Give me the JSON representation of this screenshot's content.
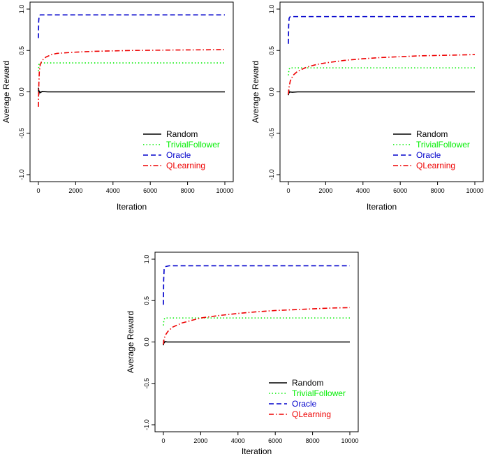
{
  "chart_data": [
    {
      "type": "line",
      "title": "",
      "xlabel": "Iteration",
      "ylabel": "Average Reward",
      "xlim": [
        0,
        10000
      ],
      "ylim": [
        -1.0,
        1.0
      ],
      "x_ticks": [
        "0",
        "2000",
        "4000",
        "6000",
        "8000",
        "10000"
      ],
      "y_ticks": [
        "-1.0",
        "-0.5",
        "0.0",
        "0.5",
        "1.0"
      ],
      "legend_position": "bottom-right",
      "grid": false,
      "series": [
        {
          "name": "Random",
          "color": "#000000",
          "dash": "solid",
          "points": [
            [
              0,
              0.05
            ],
            [
              20,
              -0.03
            ],
            [
              50,
              0.01
            ],
            [
              100,
              -0.01
            ],
            [
              200,
              0.005
            ],
            [
              500,
              0.0
            ],
            [
              1000,
              0.0
            ],
            [
              2000,
              0.0
            ],
            [
              5000,
              0.0
            ],
            [
              10000,
              0.0
            ]
          ]
        },
        {
          "name": "TrivialFollower",
          "color": "#00ee00",
          "dash": "dotted",
          "points": [
            [
              0,
              0.25
            ],
            [
              30,
              0.33
            ],
            [
              80,
              0.35
            ],
            [
              200,
              0.35
            ],
            [
              1000,
              0.35
            ],
            [
              5000,
              0.35
            ],
            [
              10000,
              0.35
            ]
          ]
        },
        {
          "name": "Oracle",
          "color": "#0000cc",
          "dash": "dashed",
          "points": [
            [
              0,
              0.65
            ],
            [
              15,
              0.85
            ],
            [
              40,
              0.92
            ],
            [
              100,
              0.93
            ],
            [
              500,
              0.93
            ],
            [
              2000,
              0.93
            ],
            [
              10000,
              0.93
            ]
          ]
        },
        {
          "name": "QLearning",
          "color": "#ee0000",
          "dash": "dashdot",
          "points": [
            [
              0,
              -0.18
            ],
            [
              10,
              -0.05
            ],
            [
              25,
              0.1
            ],
            [
              50,
              0.25
            ],
            [
              100,
              0.33
            ],
            [
              200,
              0.38
            ],
            [
              400,
              0.42
            ],
            [
              700,
              0.45
            ],
            [
              1000,
              0.465
            ],
            [
              2000,
              0.48
            ],
            [
              3000,
              0.49
            ],
            [
              5000,
              0.5
            ],
            [
              7000,
              0.505
            ],
            [
              10000,
              0.51
            ]
          ]
        }
      ]
    },
    {
      "type": "line",
      "title": "",
      "xlabel": "Iteration",
      "ylabel": "Average Reward",
      "xlim": [
        0,
        10000
      ],
      "ylim": [
        -1.0,
        1.0
      ],
      "x_ticks": [
        "0",
        "2000",
        "4000",
        "6000",
        "8000",
        "10000"
      ],
      "y_ticks": [
        "-1.0",
        "-0.5",
        "0.0",
        "0.5",
        "1.0"
      ],
      "legend_position": "bottom-right",
      "grid": false,
      "series": [
        {
          "name": "Random",
          "color": "#000000",
          "dash": "solid",
          "points": [
            [
              0,
              -0.04
            ],
            [
              20,
              0.02
            ],
            [
              50,
              -0.01
            ],
            [
              100,
              0.0
            ],
            [
              200,
              -0.005
            ],
            [
              500,
              0.0
            ],
            [
              1000,
              0.0
            ],
            [
              5000,
              0.0
            ],
            [
              10000,
              0.0
            ]
          ]
        },
        {
          "name": "TrivialFollower",
          "color": "#00ee00",
          "dash": "dotted",
          "points": [
            [
              0,
              0.2
            ],
            [
              30,
              0.27
            ],
            [
              80,
              0.29
            ],
            [
              200,
              0.29
            ],
            [
              1000,
              0.29
            ],
            [
              5000,
              0.29
            ],
            [
              10000,
              0.29
            ]
          ]
        },
        {
          "name": "Oracle",
          "color": "#0000cc",
          "dash": "dashed",
          "points": [
            [
              0,
              0.58
            ],
            [
              15,
              0.8
            ],
            [
              40,
              0.89
            ],
            [
              100,
              0.91
            ],
            [
              500,
              0.91
            ],
            [
              2000,
              0.91
            ],
            [
              10000,
              0.91
            ]
          ]
        },
        {
          "name": "QLearning",
          "color": "#ee0000",
          "dash": "dashdot",
          "points": [
            [
              0,
              -0.03
            ],
            [
              30,
              0.05
            ],
            [
              100,
              0.13
            ],
            [
              250,
              0.2
            ],
            [
              500,
              0.25
            ],
            [
              1000,
              0.3
            ],
            [
              1500,
              0.33
            ],
            [
              2000,
              0.35
            ],
            [
              3000,
              0.38
            ],
            [
              4000,
              0.4
            ],
            [
              5000,
              0.415
            ],
            [
              6000,
              0.425
            ],
            [
              7000,
              0.435
            ],
            [
              8000,
              0.44
            ],
            [
              9000,
              0.445
            ],
            [
              10000,
              0.45
            ]
          ]
        }
      ]
    },
    {
      "type": "line",
      "title": "",
      "xlabel": "Iteration",
      "ylabel": "Average Reward",
      "xlim": [
        0,
        10000
      ],
      "ylim": [
        -1.0,
        1.0
      ],
      "x_ticks": [
        "0",
        "2000",
        "4000",
        "6000",
        "8000",
        "10000"
      ],
      "y_ticks": [
        "-1.0",
        "-0.5",
        "0.0",
        "0.5",
        "1.0"
      ],
      "legend_position": "bottom-right",
      "grid": false,
      "series": [
        {
          "name": "Random",
          "color": "#000000",
          "dash": "solid",
          "points": [
            [
              0,
              -0.04
            ],
            [
              20,
              0.02
            ],
            [
              50,
              -0.01
            ],
            [
              100,
              0.005
            ],
            [
              200,
              0.0
            ],
            [
              500,
              0.0
            ],
            [
              1000,
              0.0
            ],
            [
              5000,
              0.0
            ],
            [
              10000,
              0.0
            ]
          ]
        },
        {
          "name": "TrivialFollower",
          "color": "#00ee00",
          "dash": "dotted",
          "points": [
            [
              0,
              0.2
            ],
            [
              30,
              0.27
            ],
            [
              80,
              0.29
            ],
            [
              200,
              0.29
            ],
            [
              1000,
              0.29
            ],
            [
              5000,
              0.29
            ],
            [
              10000,
              0.29
            ]
          ]
        },
        {
          "name": "Oracle",
          "color": "#0000cc",
          "dash": "dashed",
          "points": [
            [
              0,
              0.45
            ],
            [
              15,
              0.75
            ],
            [
              40,
              0.88
            ],
            [
              100,
              0.91
            ],
            [
              300,
              0.92
            ],
            [
              1000,
              0.92
            ],
            [
              10000,
              0.92
            ]
          ]
        },
        {
          "name": "QLearning",
          "color": "#ee0000",
          "dash": "dashdot",
          "points": [
            [
              0,
              -0.03
            ],
            [
              30,
              0.03
            ],
            [
              100,
              0.08
            ],
            [
              250,
              0.13
            ],
            [
              500,
              0.18
            ],
            [
              1000,
              0.23
            ],
            [
              1500,
              0.26
            ],
            [
              2000,
              0.29
            ],
            [
              3000,
              0.32
            ],
            [
              4000,
              0.345
            ],
            [
              5000,
              0.365
            ],
            [
              6000,
              0.38
            ],
            [
              7000,
              0.39
            ],
            [
              8000,
              0.4
            ],
            [
              9000,
              0.41
            ],
            [
              10000,
              0.415
            ]
          ]
        }
      ]
    }
  ]
}
